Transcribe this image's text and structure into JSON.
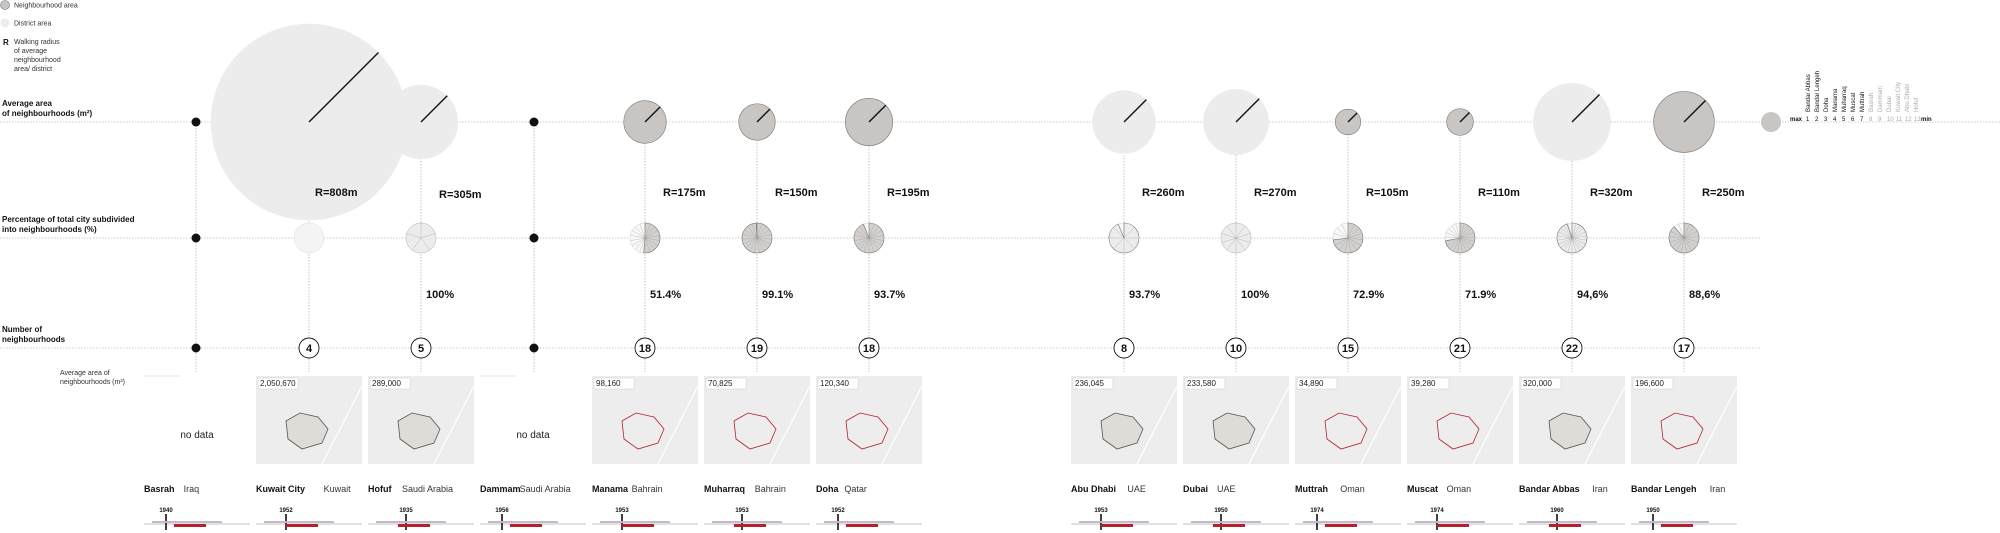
{
  "legend": {
    "neighbourhood_area": "Neighbourhood area",
    "district_area": "District area",
    "r_symbol": "R",
    "walking_radius": [
      "Walking radius",
      "of average",
      "neighbourhood",
      "area/ district"
    ]
  },
  "row_labels": {
    "avg_area": [
      "Average area",
      "of neighbourhoods (m²)"
    ],
    "percentage": [
      "Percentage of total city subdivided",
      "into neighbourhoods (%)"
    ],
    "number": [
      "Number of",
      "neighbourhoods"
    ],
    "map_avg_area": [
      "Average area of",
      "neighbourhoods (m²)"
    ]
  },
  "no_data_label": "no data",
  "colors": {
    "neighbourhood_fill": "#c9c5c3",
    "district_fill": "#ececec",
    "accent_red": "#b5202a",
    "timeline_lilac": "#c4b8cf",
    "grid_line": "#888888"
  },
  "chart_data": {
    "type": "table",
    "title": "",
    "cities": [
      {
        "city": "Basrah",
        "country": "Iraq",
        "avg_area_label": "",
        "avg_area_m2": null,
        "radius_label": "",
        "radius_m": null,
        "percentage_label": "",
        "percentage": null,
        "count_label": "",
        "count": null,
        "area_type": "none",
        "year": "1940",
        "no_data": true
      },
      {
        "city": "Kuwait City",
        "country": "Kuwait",
        "avg_area_label": "2,050,670",
        "avg_area_m2": 2050670,
        "radius_label": "R=808m",
        "radius_m": 808,
        "percentage_label": "",
        "percentage": null,
        "count_label": "4",
        "count": 4,
        "area_type": "district",
        "year": "1952",
        "no_data": false
      },
      {
        "city": "Hofuf",
        "country": "Saudi Arabia",
        "avg_area_label": "289,000",
        "avg_area_m2": 289000,
        "radius_label": "R=305m",
        "radius_m": 305,
        "percentage_label": "100%",
        "percentage": 100,
        "count_label": "5",
        "count": 5,
        "area_type": "district",
        "year": "1935",
        "no_data": false
      },
      {
        "city": "Dammam",
        "country": "Saudi Arabia",
        "avg_area_label": "",
        "avg_area_m2": null,
        "radius_label": "",
        "radius_m": null,
        "percentage_label": "",
        "percentage": null,
        "count_label": "",
        "count": null,
        "area_type": "none",
        "year": "1956",
        "no_data": true
      },
      {
        "city": "Manama",
        "country": "Bahrain",
        "avg_area_label": "98,160",
        "avg_area_m2": 98160,
        "radius_label": "R=175m",
        "radius_m": 175,
        "percentage_label": "51.4%",
        "percentage": 51.4,
        "count_label": "18",
        "count": 18,
        "area_type": "neighbourhood",
        "year": "1953",
        "no_data": false
      },
      {
        "city": "Muharraq",
        "country": "Bahrain",
        "avg_area_label": "70,825",
        "avg_area_m2": 70825,
        "radius_label": "R=150m",
        "radius_m": 150,
        "percentage_label": "99.1%",
        "percentage": 99.1,
        "count_label": "19",
        "count": 19,
        "area_type": "neighbourhood",
        "year": "1953",
        "no_data": false
      },
      {
        "city": "Doha",
        "country": "Qatar",
        "avg_area_label": "120,340",
        "avg_area_m2": 120340,
        "radius_label": "R=195m",
        "radius_m": 195,
        "percentage_label": "93.7%",
        "percentage": 93.7,
        "count_label": "18",
        "count": 18,
        "area_type": "neighbourhood",
        "year": "1952",
        "no_data": false
      },
      {
        "city": "Abu Dhabi",
        "country": "UAE",
        "avg_area_label": "236,045",
        "avg_area_m2": 236045,
        "radius_label": "R=260m",
        "radius_m": 260,
        "percentage_label": "93.7%",
        "percentage": 93.7,
        "count_label": "8",
        "count": 8,
        "area_type": "district",
        "year": "1953",
        "no_data": false
      },
      {
        "city": "Dubai",
        "country": "UAE",
        "avg_area_label": "233,580",
        "avg_area_m2": 233580,
        "radius_label": "R=270m",
        "radius_m": 270,
        "percentage_label": "100%",
        "percentage": 100,
        "count_label": "10",
        "count": 10,
        "area_type": "district",
        "year": "1950",
        "no_data": false
      },
      {
        "city": "Muttrah",
        "country": "Oman",
        "avg_area_label": "34,890",
        "avg_area_m2": 34890,
        "radius_label": "R=105m",
        "radius_m": 105,
        "percentage_label": "72.9%",
        "percentage": 72.9,
        "count_label": "15",
        "count": 15,
        "area_type": "neighbourhood",
        "year": "1974",
        "no_data": false
      },
      {
        "city": "Muscat",
        "country": "Oman",
        "avg_area_label": "39,280",
        "avg_area_m2": 39280,
        "radius_label": "R=110m",
        "radius_m": 110,
        "percentage_label": "71.9%",
        "percentage": 71.9,
        "count_label": "21",
        "count": 21,
        "area_type": "neighbourhood",
        "year": "1974",
        "no_data": false
      },
      {
        "city": "Bandar Abbas",
        "country": "Iran",
        "avg_area_label": "320,000",
        "avg_area_m2": 320000,
        "radius_label": "R=320m",
        "radius_m": 320,
        "percentage_label": "94,6%",
        "percentage": 94.6,
        "count_label": "22",
        "count": 22,
        "area_type": "district",
        "year": "1960",
        "no_data": false
      },
      {
        "city": "Bandar Lengeh",
        "country": "Iran",
        "avg_area_label": "196,600",
        "avg_area_m2": 196600,
        "radius_label": "R=250m",
        "radius_m": 250,
        "percentage_label": "88,6%",
        "percentage": 88.6,
        "count_label": "17",
        "count": 17,
        "area_type": "neighbourhood",
        "year": "1950",
        "no_data": false
      }
    ],
    "ranking": {
      "max_label": "max",
      "min_label": "min",
      "numbers": [
        "1",
        "2",
        "3",
        "4",
        "5",
        "6",
        "7",
        "8",
        "9",
        "10",
        "11",
        "12",
        "13"
      ],
      "names": [
        "Bandar Abbas",
        "Bandar Lengeh",
        "Doha",
        "Manama",
        "Muharraq",
        "Muscat",
        "Muttrah",
        "Basrah",
        "Dammam",
        "Dubai",
        "Kuwait City",
        "Abu Dhabi",
        "Hofuf"
      ]
    }
  }
}
